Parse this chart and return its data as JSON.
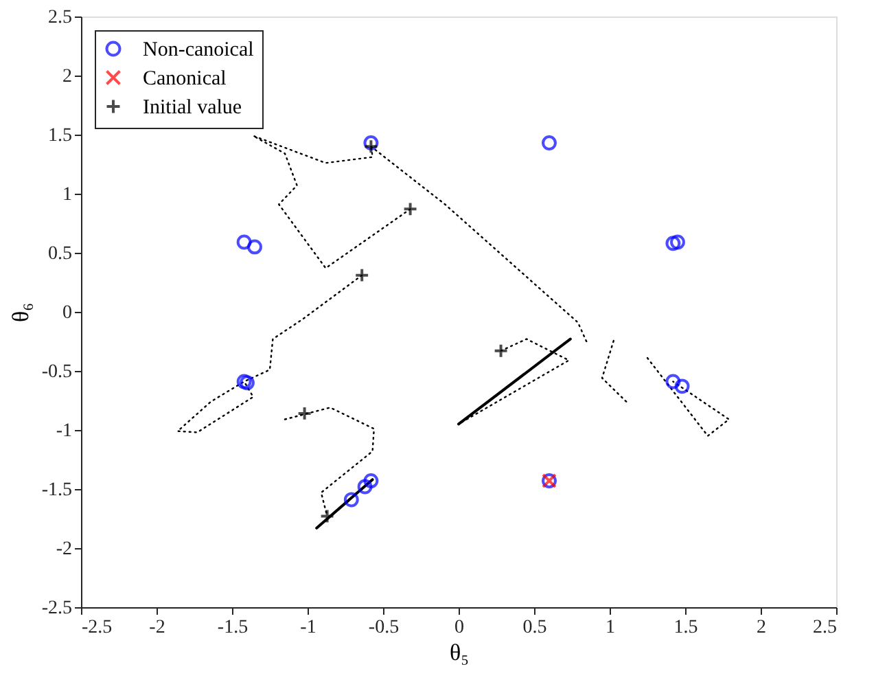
{
  "chart_data": {
    "type": "scatter",
    "xlabel": "θ₅",
    "ylabel": "θ₆",
    "xlim": [
      -2.5,
      2.5
    ],
    "ylim": [
      -2.5,
      2.5
    ],
    "xticks": [
      -2.5,
      -2,
      -1.5,
      -1,
      -0.5,
      0,
      0.5,
      1,
      1.5,
      2,
      2.5
    ],
    "yticks": [
      -2.5,
      -2,
      -1.5,
      -1,
      -0.5,
      0,
      0.5,
      1,
      1.5,
      2,
      2.5
    ],
    "grid": false,
    "legend": "top left",
    "series": [
      {
        "type": "line",
        "line_style": "dotted",
        "color": "#000000",
        "x": [
          -0.32,
          -0.88,
          -1.19,
          -1.07,
          -1.15,
          -1.36,
          -0.88,
          -0.57,
          -0.58
        ],
        "values": [
          0.87,
          0.37,
          0.91,
          1.07,
          1.34,
          1.49,
          1.26,
          1.31,
          1.42
        ]
      },
      {
        "type": "line",
        "line_style": "dotted",
        "color": "#000000",
        "x": [
          -0.58,
          -0.09,
          0.79,
          0.85
        ],
        "values": [
          1.4,
          0.91,
          -0.09,
          -0.26
        ]
      },
      {
        "type": "line",
        "line_style": "dotted",
        "color": "#000000",
        "x": [
          0.28,
          0.45,
          0.73,
          0.0
        ],
        "values": [
          -0.33,
          -0.23,
          -0.41,
          -0.95
        ]
      },
      {
        "type": "line",
        "line_style": "solid",
        "color": "#000000",
        "x": [
          0.0,
          0.74
        ],
        "values": [
          -0.95,
          -0.23
        ]
      },
      {
        "type": "line",
        "line_style": "dotted",
        "color": "#000000",
        "x": [
          1.11,
          0.95,
          1.03
        ],
        "values": [
          -0.76,
          -0.56,
          -0.23
        ]
      },
      {
        "type": "line",
        "line_style": "dotted",
        "color": "#000000",
        "x": [
          1.25,
          1.65,
          1.79,
          1.42
        ],
        "values": [
          -0.39,
          -1.05,
          -0.91,
          -0.59
        ]
      },
      {
        "type": "line",
        "line_style": "dotted",
        "color": "#000000",
        "x": [
          -0.64,
          -1.03,
          -1.23,
          -1.25,
          -1.42,
          -1.64,
          -1.86,
          -1.73,
          -1.36,
          -1.42
        ],
        "values": [
          0.31,
          -0.06,
          -0.23,
          -0.49,
          -0.59,
          -0.76,
          -1.01,
          -1.02,
          -0.72,
          -0.59
        ]
      },
      {
        "type": "line",
        "line_style": "dotted",
        "color": "#000000",
        "x": [
          -1.15,
          -0.85,
          -0.56,
          -0.57,
          -0.91,
          -0.87
        ],
        "values": [
          -0.91,
          -0.81,
          -0.99,
          -1.18,
          -1.53,
          -1.73
        ]
      },
      {
        "type": "line",
        "line_style": "solid",
        "color": "#000000",
        "x": [
          -0.94,
          -0.57
        ],
        "values": [
          -1.83,
          -1.42
        ]
      },
      {
        "name": "Non-canoical",
        "marker": "circle",
        "color": "#0000ff",
        "x": [
          -0.58,
          0.6,
          -1.42,
          -1.35,
          1.42,
          1.45,
          -1.42,
          -1.4,
          1.42,
          1.48,
          -0.58,
          -0.62,
          -0.71,
          0.6
        ],
        "values": [
          1.43,
          1.43,
          0.59,
          0.55,
          0.58,
          0.59,
          -0.59,
          -0.6,
          -0.59,
          -0.63,
          -1.43,
          -1.48,
          -1.59,
          -1.43
        ]
      },
      {
        "name": "Canonical",
        "marker": "cross",
        "color": "#ff0000",
        "x": [
          0.6
        ],
        "values": [
          -1.43
        ]
      },
      {
        "name": "Initial value",
        "marker": "plus",
        "color": "#000000",
        "x": [
          -0.32,
          -0.64,
          0.28,
          -1.02,
          -0.58,
          -0.87
        ],
        "values": [
          0.87,
          0.31,
          -0.33,
          -0.86,
          1.4,
          -1.73
        ]
      }
    ]
  }
}
